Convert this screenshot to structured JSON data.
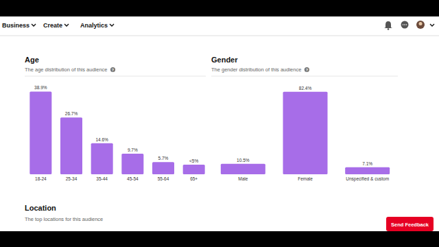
{
  "page": {
    "nav": [
      "Business",
      "Create",
      "Analytics"
    ],
    "help": "?",
    "location_title": "Location",
    "location_subtitle": "The top locations for this audience",
    "feedback": "Send Feedback"
  },
  "chart_data": [
    {
      "type": "bar",
      "title": "Age",
      "subtitle": "The age distribution of this audience",
      "categories": [
        "18-24",
        "25-34",
        "35-44",
        "45-54",
        "55-64",
        "65+"
      ],
      "values": [
        38.9,
        26.7,
        14.6,
        9.7,
        5.7,
        4.5
      ],
      "value_labels": [
        "38.9%",
        "26.7%",
        "14.6%",
        "9.7%",
        "5.7%",
        "<5%"
      ],
      "data_labels": true,
      "color": "#a76de8",
      "ylim": [
        0,
        40
      ],
      "grid": false,
      "tick_labels": "x"
    },
    {
      "type": "bar",
      "title": "Gender",
      "subtitle": "The gender distribution of this audience",
      "categories": [
        "Male",
        "Female",
        "Unspecified & custom"
      ],
      "values": [
        10.5,
        82.4,
        7.1
      ],
      "value_labels": [
        "10.5%",
        "82.4%",
        "7.1%"
      ],
      "data_labels": true,
      "color": "#a76de8",
      "ylim": [
        0,
        85
      ],
      "grid": false,
      "tick_labels": "x"
    }
  ]
}
